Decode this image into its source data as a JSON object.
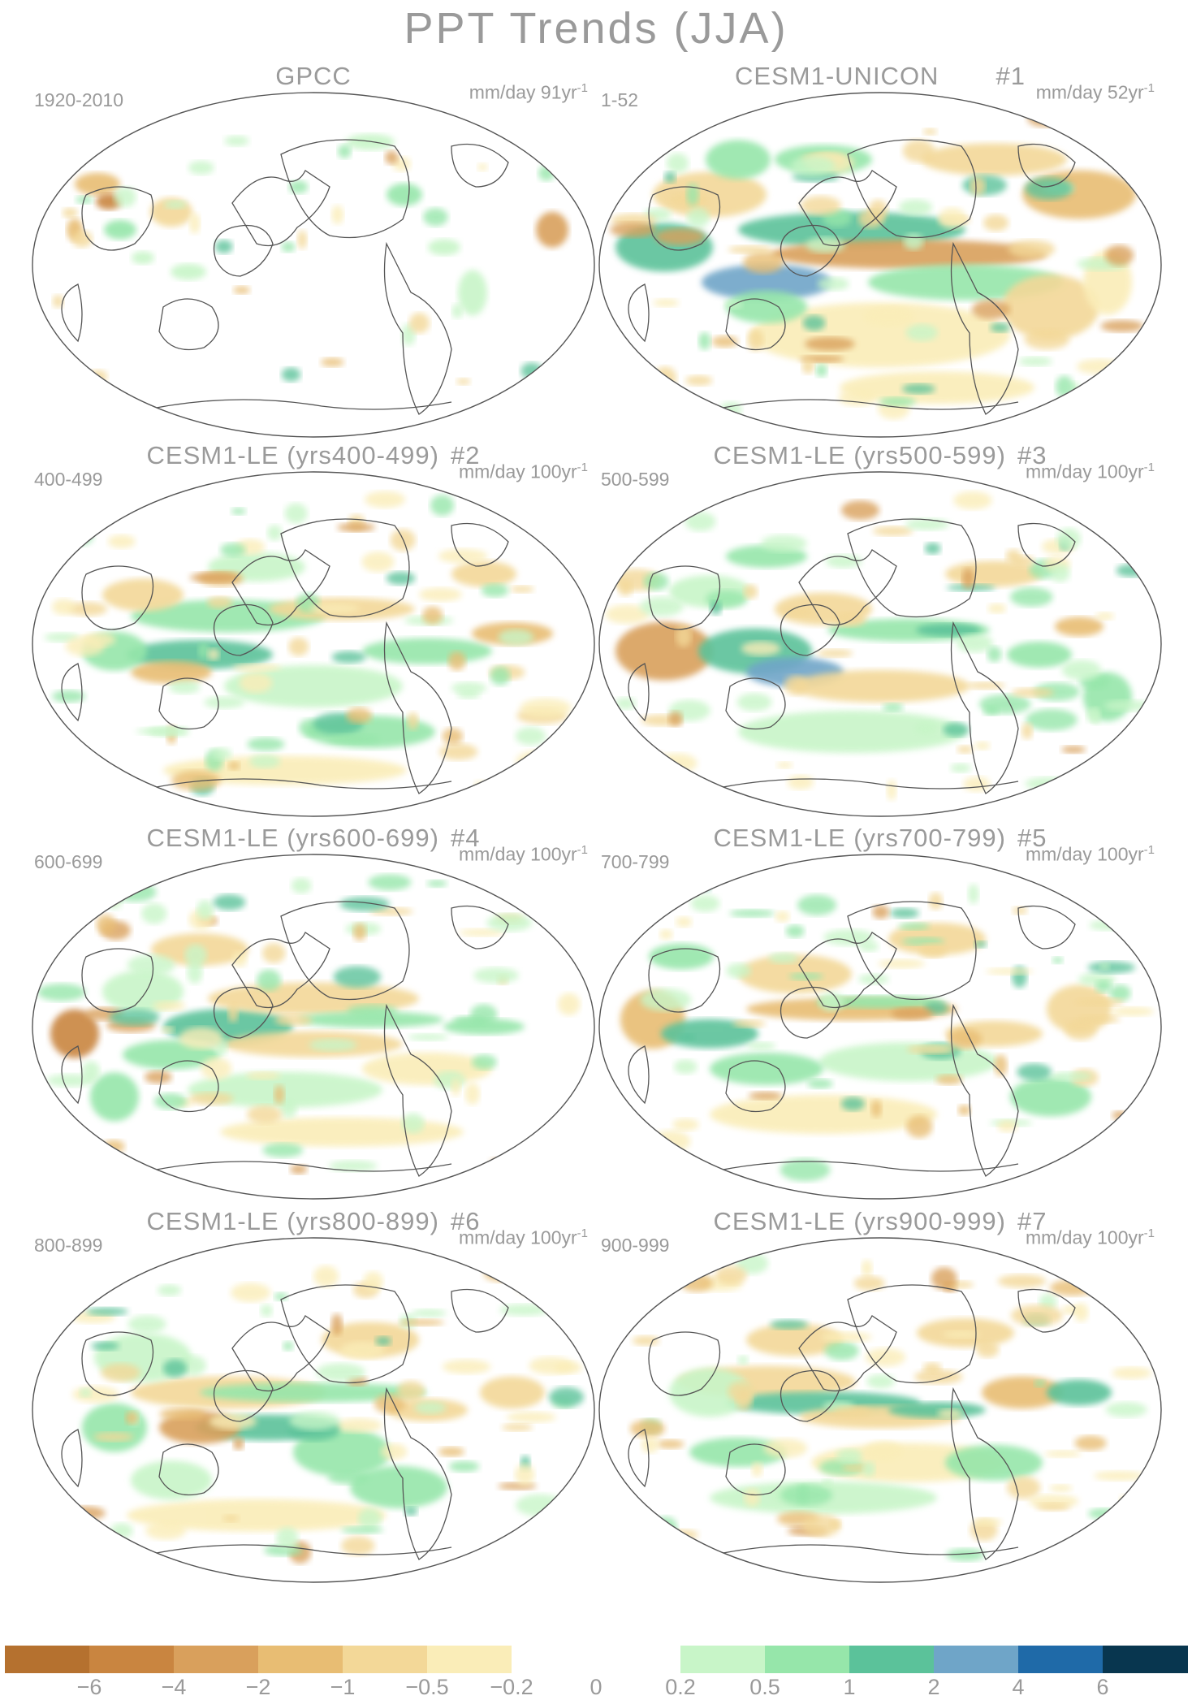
{
  "title": "PPT Trends (JJA)",
  "panels": [
    {
      "title": "GPCC",
      "tag": "",
      "period": "1920-2010",
      "units": "mm/day 91yr",
      "units_exp": "-1",
      "pattern": "obs"
    },
    {
      "title": "CESM1-UNICON",
      "tag": "#1",
      "period": "1-52",
      "units": "mm/day 52yr",
      "units_exp": "-1",
      "pattern": "unicon"
    },
    {
      "title": "CESM1-LE (yrs400-499)",
      "tag": "#2",
      "period": "400-499",
      "units": "mm/day 100yr",
      "units_exp": "-1",
      "pattern": "le2"
    },
    {
      "title": "CESM1-LE (yrs500-599)",
      "tag": "#3",
      "period": "500-599",
      "units": "mm/day 100yr",
      "units_exp": "-1",
      "pattern": "le3"
    },
    {
      "title": "CESM1-LE (yrs600-699)",
      "tag": "#4",
      "period": "600-699",
      "units": "mm/day 100yr",
      "units_exp": "-1",
      "pattern": "le4"
    },
    {
      "title": "CESM1-LE (yrs700-799)",
      "tag": "#5",
      "period": "700-799",
      "units": "mm/day 100yr",
      "units_exp": "-1",
      "pattern": "le5"
    },
    {
      "title": "CESM1-LE (yrs800-899)",
      "tag": "#6",
      "period": "800-899",
      "units": "mm/day 100yr",
      "units_exp": "-1",
      "pattern": "le6"
    },
    {
      "title": "CESM1-LE (yrs900-999)",
      "tag": "#7",
      "period": "900-999",
      "units": "mm/day 100yr",
      "units_exp": "-1",
      "pattern": "le7"
    }
  ],
  "colorbar": {
    "colors": [
      "#b5712f",
      "#c98540",
      "#d9a05c",
      "#e8bd73",
      "#f3d898",
      "#faedb8",
      "#ffffff",
      "#ffffff",
      "#c8f5c8",
      "#96e6aa",
      "#5bc29a",
      "#6fa5c8",
      "#1f6aa8",
      "#08364f"
    ],
    "labels": [
      "-6",
      "-4",
      "-2",
      "-1",
      "-0.5",
      "-0.2",
      "0",
      "0.2",
      "0.5",
      "1",
      "2",
      "4",
      "6"
    ]
  }
}
